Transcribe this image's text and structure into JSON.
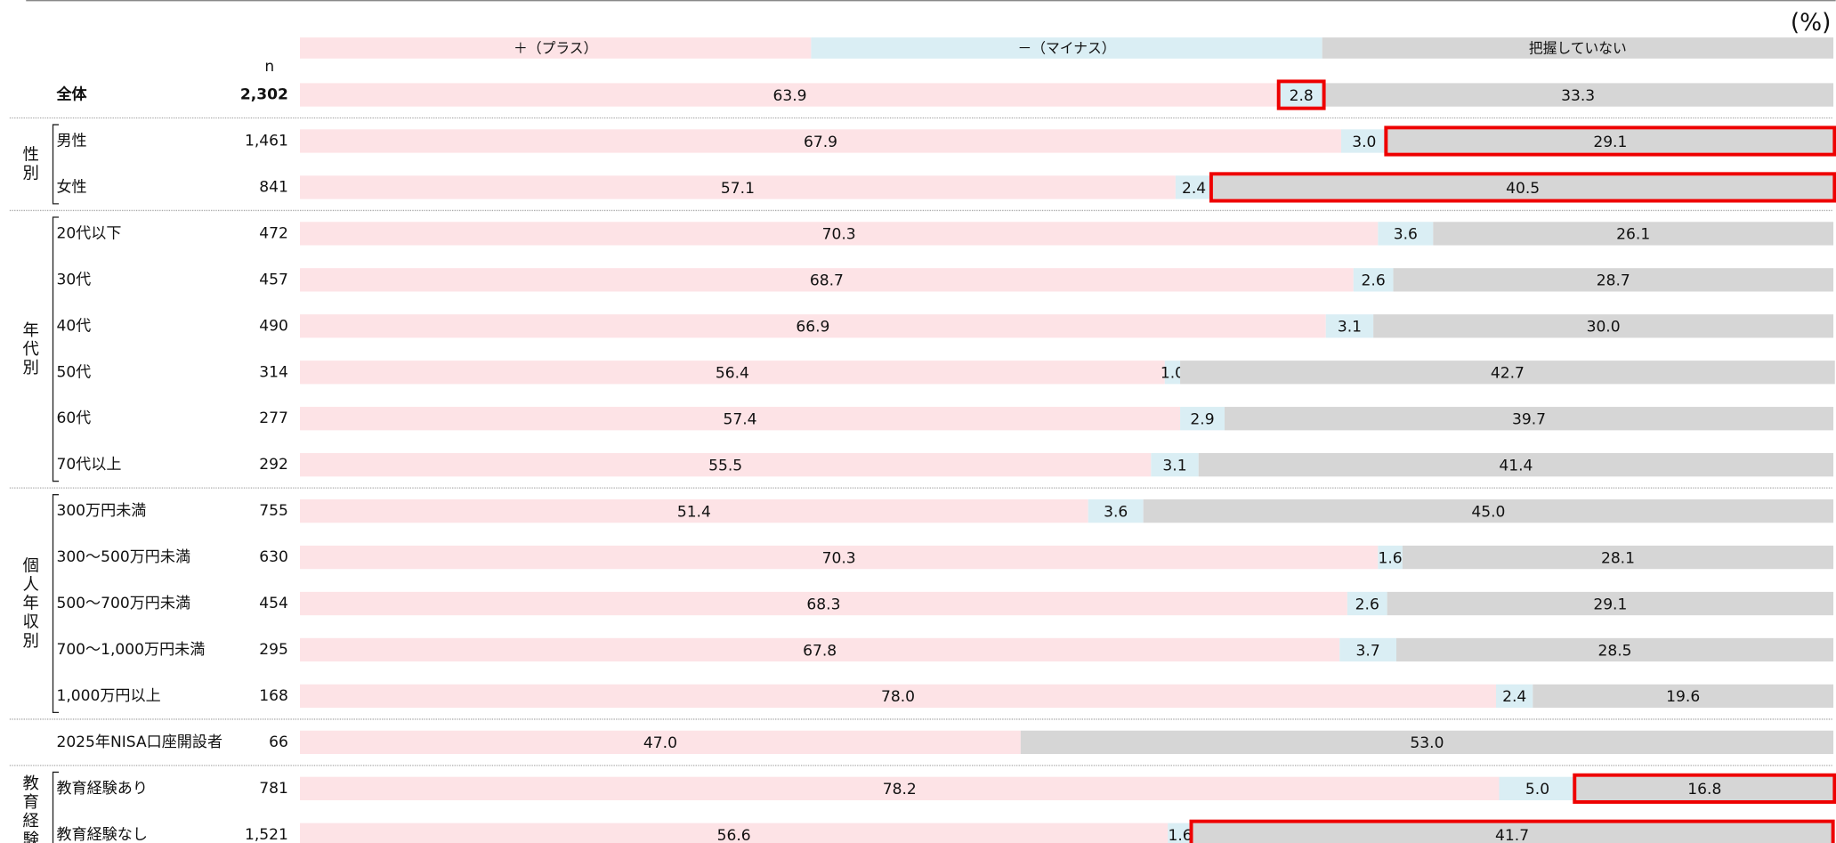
{
  "chart_data": {
    "type": "stacked-bar-100",
    "unit": "(%)",
    "n_header": "n",
    "xlim": [
      0,
      100
    ],
    "categories": [
      "全体",
      "男性",
      "女性",
      "20代以下",
      "30代",
      "40代",
      "50代",
      "60代",
      "70代以上",
      "300万円未満",
      "300～500万円未満",
      "500～700万円未満",
      "700～1,000万円未満",
      "1,000万円以上",
      "2025年NISA口座開設者",
      "教育経験あり",
      "教育経験なし"
    ],
    "n": [
      "2,302",
      "1,461",
      "841",
      "472",
      "457",
      "490",
      "314",
      "277",
      "292",
      "755",
      "630",
      "454",
      "295",
      "168",
      "66",
      "781",
      "1,521"
    ],
    "groups": [
      {
        "label": "性別",
        "rows": [
          1,
          2
        ]
      },
      {
        "label": "年代別",
        "rows": [
          3,
          8
        ]
      },
      {
        "label": "個人年収別",
        "rows": [
          9,
          13
        ]
      },
      {
        "label": "教育経験",
        "rows": [
          15,
          16
        ]
      }
    ],
    "series": [
      {
        "name": "＋（プラス）",
        "color": "#fde3e6",
        "values": [
          63.9,
          67.9,
          57.1,
          70.3,
          68.7,
          66.9,
          56.4,
          57.4,
          55.5,
          51.4,
          70.3,
          68.3,
          67.8,
          78.0,
          47.0,
          78.2,
          56.6
        ],
        "value_labels": [
          "63.9",
          "67.9",
          "57.1",
          "70.3",
          "68.7",
          "66.9",
          "56.4",
          "57.4",
          "55.5",
          "51.4",
          "70.3",
          "68.3",
          "67.8",
          "78.0",
          "47.0",
          "78.2",
          "56.6"
        ]
      },
      {
        "name": "－（マイナス）",
        "color": "#daeef4",
        "values": [
          2.8,
          3.0,
          2.4,
          3.6,
          2.6,
          3.1,
          1.0,
          2.9,
          3.1,
          3.6,
          1.6,
          2.6,
          3.7,
          2.4,
          null,
          5.0,
          1.6
        ],
        "value_labels": [
          "2.8",
          "3.0",
          "2.4",
          "3.6",
          "2.6",
          "3.1",
          "1.0",
          "2.9",
          "3.1",
          "3.6",
          "1.6",
          "2.6",
          "3.7",
          "2.4",
          null,
          "5.0",
          "1.6"
        ]
      },
      {
        "name": "把握していない",
        "color": "#d6d6d6",
        "values": [
          33.3,
          29.1,
          40.5,
          26.1,
          28.7,
          30.0,
          42.7,
          39.7,
          41.4,
          45.0,
          28.1,
          29.1,
          28.5,
          19.6,
          53.0,
          16.8,
          41.7
        ],
        "value_labels": [
          "33.3",
          "29.1",
          "40.5",
          "26.1",
          "28.7",
          "30.0",
          "42.7",
          "39.7",
          "41.4",
          "45.0",
          "28.1",
          "29.1",
          "28.5",
          "19.6",
          "53.0",
          "16.8",
          "41.7"
        ]
      }
    ],
    "highlight_color": "#ee0000",
    "highlights": [
      {
        "row": 0,
        "series": 1
      },
      {
        "row": 1,
        "series": 2
      },
      {
        "row": 2,
        "series": 2
      },
      {
        "row": 15,
        "series": 2
      },
      {
        "row": 16,
        "series": 2
      }
    ]
  }
}
